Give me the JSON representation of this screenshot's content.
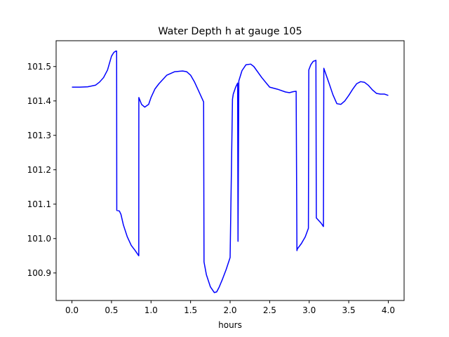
{
  "chart_data": {
    "type": "line",
    "title": "Water Depth h at gauge 105",
    "xlabel": "hours",
    "ylabel": "",
    "xlim": [
      -0.2,
      4.2
    ],
    "ylim": [
      100.82,
      101.575
    ],
    "xticks": [
      0.0,
      0.5,
      1.0,
      1.5,
      2.0,
      2.5,
      3.0,
      3.5,
      4.0
    ],
    "xtick_labels": [
      "0.0",
      "0.5",
      "1.0",
      "1.5",
      "2.0",
      "2.5",
      "3.0",
      "3.5",
      "4.0"
    ],
    "yticks": [
      100.9,
      101.0,
      101.1,
      101.2,
      101.3,
      101.4,
      101.5
    ],
    "ytick_labels": [
      "100.9",
      "101.0",
      "101.1",
      "101.2",
      "101.3",
      "101.4",
      "101.5"
    ],
    "grid": false,
    "series": [
      {
        "color": "#0000ff",
        "x": [
          0.0,
          0.1,
          0.2,
          0.3,
          0.35,
          0.4,
          0.45,
          0.5,
          0.53,
          0.555,
          0.565,
          0.567,
          0.6,
          0.62,
          0.65,
          0.7,
          0.75,
          0.8,
          0.845,
          0.846,
          0.88,
          0.92,
          0.97,
          1.0,
          1.05,
          1.1,
          1.2,
          1.3,
          1.4,
          1.45,
          1.5,
          1.55,
          1.6,
          1.665,
          1.67,
          1.7,
          1.75,
          1.8,
          1.83,
          1.86,
          1.9,
          1.95,
          2.0,
          2.03,
          2.04,
          2.07,
          2.095,
          2.1,
          2.11,
          2.15,
          2.2,
          2.26,
          2.3,
          2.4,
          2.5,
          2.6,
          2.7,
          2.75,
          2.8,
          2.835,
          2.845,
          2.85,
          2.9,
          2.95,
          2.99,
          2.995,
          3.02,
          3.05,
          3.085,
          3.09,
          3.15,
          3.18,
          3.185,
          3.2,
          3.25,
          3.3,
          3.35,
          3.4,
          3.45,
          3.5,
          3.55,
          3.6,
          3.65,
          3.7,
          3.75,
          3.8,
          3.85,
          3.9,
          3.95,
          4.0
        ],
        "y": [
          101.44,
          101.44,
          101.441,
          101.446,
          101.455,
          101.468,
          101.49,
          101.53,
          101.541,
          101.545,
          101.545,
          101.082,
          101.08,
          101.07,
          101.04,
          101.005,
          100.98,
          100.965,
          100.95,
          101.41,
          101.39,
          101.382,
          101.39,
          101.41,
          101.435,
          101.45,
          101.475,
          101.485,
          101.487,
          101.485,
          101.475,
          101.455,
          101.43,
          101.397,
          100.932,
          100.895,
          100.86,
          100.843,
          100.845,
          100.858,
          100.88,
          100.91,
          100.945,
          101.405,
          101.42,
          101.44,
          101.452,
          100.992,
          101.458,
          101.488,
          101.505,
          101.507,
          101.5,
          101.468,
          101.44,
          101.434,
          101.426,
          101.424,
          101.427,
          101.428,
          100.965,
          100.97,
          100.985,
          101.005,
          101.03,
          101.49,
          101.505,
          101.515,
          101.518,
          101.06,
          101.045,
          101.035,
          101.495,
          101.485,
          101.452,
          101.418,
          101.392,
          101.39,
          101.4,
          101.416,
          101.434,
          101.45,
          101.456,
          101.454,
          101.445,
          101.432,
          101.422,
          101.42,
          101.42,
          101.416
        ]
      }
    ]
  }
}
